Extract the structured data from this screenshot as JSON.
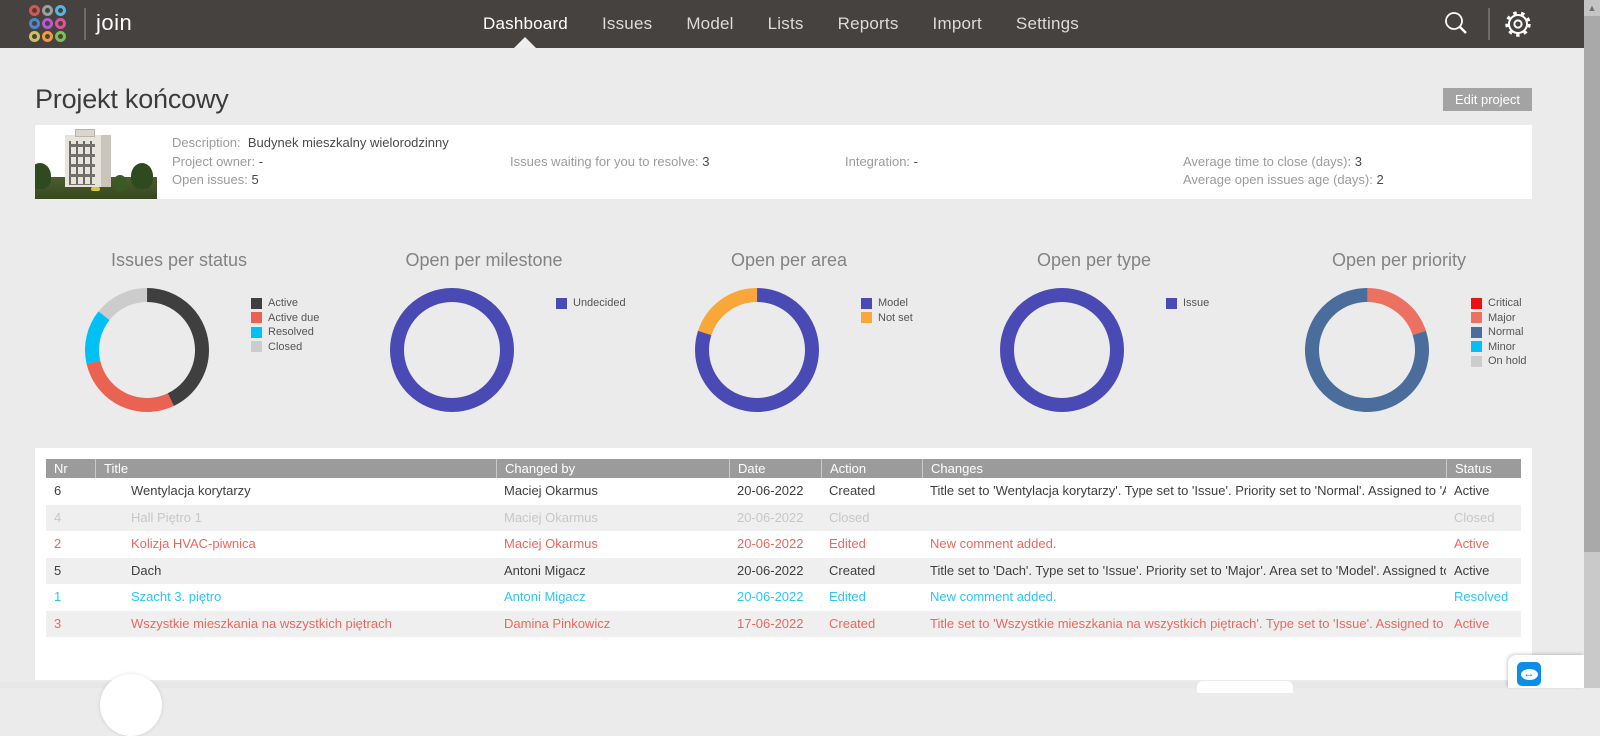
{
  "nav": {
    "brand": "join",
    "logo_colors": [
      "#e05252",
      "#9aa0a0",
      "#4fb8e8",
      "#4f86c8",
      "#b85ad0",
      "#e0529a",
      "#cfc25e",
      "#f09a44",
      "#7cc24f"
    ],
    "items": [
      {
        "label": "Dashboard",
        "active": true
      },
      {
        "label": "Issues",
        "active": false
      },
      {
        "label": "Model",
        "active": false
      },
      {
        "label": "Lists",
        "active": false
      },
      {
        "label": "Reports",
        "active": false
      },
      {
        "label": "Import",
        "active": false
      },
      {
        "label": "Settings",
        "active": false
      }
    ],
    "icons": {
      "search": "search-icon",
      "settings": "gear-icon"
    }
  },
  "page": {
    "title": "Projekt końcowy",
    "edit_button": "Edit project"
  },
  "project_info": {
    "description_label": "Description:",
    "description": "Budynek mieszkalny wielorodzinny",
    "owner_label": "Project owner:",
    "owner": "-",
    "open_issues_label": "Open issues:",
    "open_issues": "5",
    "waiting_label": "Issues waiting for you to resolve:",
    "waiting": "3",
    "integration_label": "Integration:",
    "integration": "-",
    "avg_close_label": "Average time to close (days):",
    "avg_close": "3",
    "avg_age_label": "Average open issues age (days):",
    "avg_age": "2"
  },
  "chart_data": [
    {
      "type": "pie",
      "donut": true,
      "title": "Issues per status",
      "categories": [
        "Active",
        "Active due",
        "Resolved",
        "Closed"
      ],
      "values": [
        3,
        2,
        1,
        1
      ],
      "colors": [
        "#3f3f3f",
        "#ea6252",
        "#00c0f5",
        "#cccccc"
      ],
      "legend_position": "right"
    },
    {
      "type": "pie",
      "donut": true,
      "title": "Open per milestone",
      "categories": [
        "Undecided"
      ],
      "values": [
        5
      ],
      "colors": [
        "#4a4ab4"
      ],
      "legend_position": "right"
    },
    {
      "type": "pie",
      "donut": true,
      "title": "Open per area",
      "categories": [
        "Model",
        "Not set"
      ],
      "values": [
        4,
        1
      ],
      "colors": [
        "#4a4ab4",
        "#f9a738"
      ],
      "legend_position": "right"
    },
    {
      "type": "pie",
      "donut": true,
      "title": "Open per type",
      "categories": [
        "Issue"
      ],
      "values": [
        5
      ],
      "colors": [
        "#4a4ab4"
      ],
      "legend_position": "right"
    },
    {
      "type": "pie",
      "donut": true,
      "title": "Open per priority",
      "categories": [
        "Critical",
        "Major",
        "Normal",
        "Minor",
        "On hold"
      ],
      "values": [
        0,
        1,
        4,
        0,
        0
      ],
      "colors": [
        "#ee1111",
        "#ed7161",
        "#4a6d9b",
        "#00c0f5",
        "#cccccc"
      ],
      "legend_position": "right"
    }
  ],
  "table": {
    "columns": [
      "Nr",
      "Title",
      "Changed by",
      "Date",
      "Action",
      "Changes",
      "Status"
    ],
    "rows": [
      {
        "nr": "6",
        "title": "Wentylacja korytarzy",
        "changed_by": "Maciej Okarmus",
        "date": "20-06-2022",
        "action": "Created",
        "changes": "Title set to 'Wentylacja korytarzy'. Type set to 'Issue'. Priority set to 'Normal'. Assigned to 'An...",
        "status": "Active",
        "tone": "normal"
      },
      {
        "nr": "4",
        "title": "Hall Piętro 1",
        "changed_by": "Maciej Okarmus",
        "date": "20-06-2022",
        "action": "Closed",
        "changes": "",
        "status": "Closed",
        "tone": "closed"
      },
      {
        "nr": "2",
        "title": "Kolizja HVAC-piwnica",
        "changed_by": "Maciej Okarmus",
        "date": "20-06-2022",
        "action": "Edited",
        "changes": "New comment added.",
        "status": "Active",
        "tone": "overdue"
      },
      {
        "nr": "5",
        "title": "Dach",
        "changed_by": "Antoni Migacz",
        "date": "20-06-2022",
        "action": "Created",
        "changes": "Title set to 'Dach'. Type set to 'Issue'. Priority set to 'Major'. Area set to 'Model'. Assigned to '...",
        "status": "Active",
        "tone": "normal"
      },
      {
        "nr": "1",
        "title": "Szacht 3. piętro",
        "changed_by": "Antoni Migacz",
        "date": "20-06-2022",
        "action": "Edited",
        "changes": "New comment added.",
        "status": "Resolved",
        "tone": "resolved"
      },
      {
        "nr": "3",
        "title": "Wszystkie mieszkania na wszystkich piętrach",
        "changed_by": "Damina Pinkowicz",
        "date": "17-06-2022",
        "action": "Created",
        "changes": "Title set to 'Wszystkie mieszkania na wszystkich piętrach'. Type set to 'Issue'. Assigned to 'A...",
        "status": "Active",
        "tone": "overdue"
      }
    ]
  },
  "colors": {
    "navbar": "#454240",
    "page_bg": "#ebebeb",
    "accent_blue": "#4a4ab4",
    "salmon": "#ea6252",
    "cyan": "#00c0f5",
    "table_header": "#9b9b9b",
    "teamviewer_blue": "#0b8de8"
  }
}
